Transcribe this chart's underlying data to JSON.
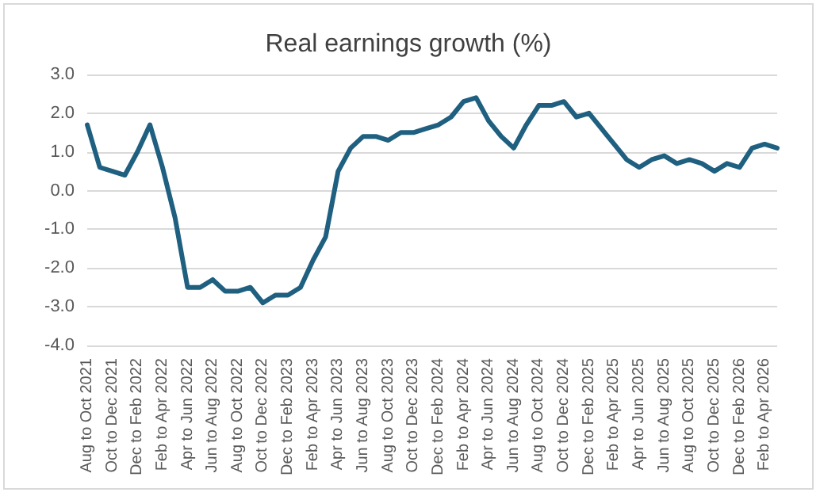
{
  "chart_data": {
    "type": "line",
    "title": "Real earnings growth (%)",
    "categories": [
      "Aug to Oct 2021",
      null,
      "Oct to Dec 2021",
      null,
      "Dec to Feb 2022",
      null,
      "Feb to Apr 2022",
      null,
      "Apr to Jun 2022",
      null,
      "Jun to Aug 2022",
      null,
      "Aug to Oct 2022",
      null,
      "Oct to Dec 2022",
      null,
      "Dec to Feb 2023",
      null,
      "Feb to Apr 2023",
      null,
      "Apr to Jun 2023",
      null,
      "Jun to Aug 2023",
      null,
      "Aug to Oct 2023",
      null,
      "Oct to Dec 2023",
      null,
      "Dec to Feb 2024",
      null,
      "Feb to Apr 2024",
      null,
      "Apr to Jun 2024",
      null,
      "Jun to Aug 2024",
      null,
      "Aug to Oct 2024",
      null,
      "Oct to Dec 2024",
      null,
      "Dec to Feb 2025",
      null,
      "Feb to Apr 2025",
      null,
      "Apr to Jun 2025",
      null,
      "Jun to Aug 2025",
      null,
      "Aug to Oct 2025",
      null,
      "Oct to Dec 2025",
      null,
      "Dec to Feb 2026",
      null,
      "Feb to Apr 2026",
      null
    ],
    "series": [
      {
        "color": "#1f5f80",
        "values": [
          1.7,
          0.6,
          0.5,
          0.4,
          1.0,
          1.7,
          0.6,
          -0.7,
          -2.5,
          -2.5,
          -2.3,
          -2.6,
          -2.6,
          -2.5,
          -2.9,
          -2.7,
          -2.7,
          -2.5,
          -1.8,
          -1.2,
          0.5,
          1.1,
          1.4,
          1.4,
          1.3,
          1.5,
          1.5,
          1.6,
          1.7,
          1.9,
          2.3,
          2.4,
          1.8,
          1.4,
          1.1,
          1.7,
          2.2,
          2.2,
          2.3,
          1.9,
          2.0,
          1.6,
          1.2,
          0.8,
          0.6,
          0.8,
          0.9,
          0.7,
          0.8,
          0.7,
          0.5,
          0.7,
          0.6,
          1.1,
          1.2,
          1.1
        ]
      }
    ],
    "ylim": [
      -4,
      3
    ],
    "yticks": [
      {
        "value": -4,
        "label": "-4.0"
      },
      {
        "value": -3,
        "label": "-3.0"
      },
      {
        "value": -2,
        "label": "-2.0"
      },
      {
        "value": -1,
        "label": "-1.0"
      },
      {
        "value": 0,
        "label": "0.0"
      },
      {
        "value": 1,
        "label": "1.0"
      },
      {
        "value": 2,
        "label": "2.0"
      },
      {
        "value": 3,
        "label": "3.0"
      }
    ],
    "grid": "y",
    "marker": "none",
    "line_style": "solid"
  }
}
